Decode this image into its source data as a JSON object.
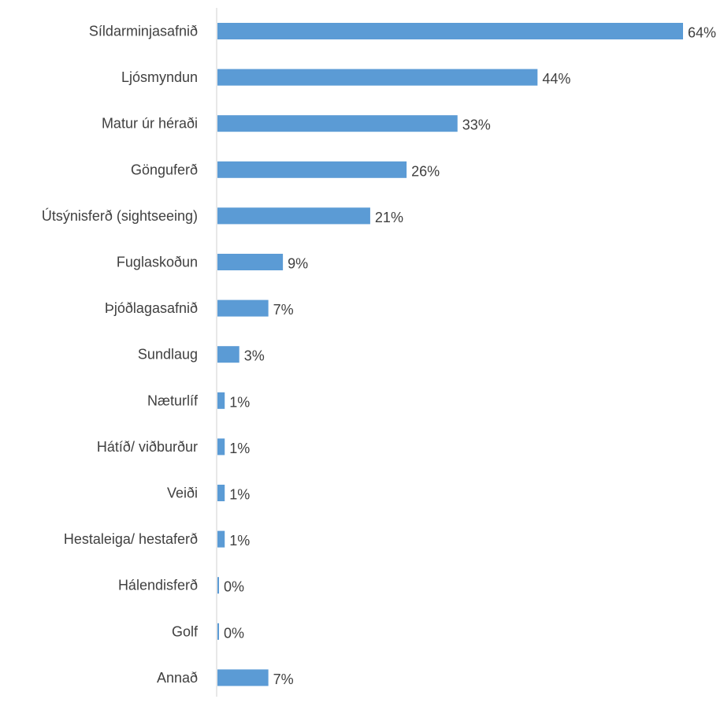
{
  "chart_data": {
    "type": "bar",
    "orientation": "horizontal",
    "title": "",
    "xlabel": "",
    "ylabel": "",
    "xlim": [
      0,
      64
    ],
    "grid": false,
    "legend": "none",
    "value_suffix": "%",
    "bar_color": "#5b9bd5",
    "axis_color": "#d9d9d9",
    "text_color": "#404040",
    "categories": [
      "Síldarminjasafnið",
      "Ljósmyndun",
      "Matur úr héraði",
      "Gönguferð",
      "Útsýnisferð (sightseeing)",
      "Fuglaskoðun",
      "Þjóðlagasafnið",
      "Sundlaug",
      "Næturlíf",
      "Hátíð/ viðburður",
      "Veiði",
      "Hestaleiga/ hestaferð",
      "Hálendisferð",
      "Golf",
      "Annað"
    ],
    "values": [
      64,
      44,
      33,
      26,
      21,
      9,
      7,
      3,
      1,
      1,
      1,
      1,
      0,
      0,
      7
    ],
    "data_labels": [
      "64%",
      "44%",
      "33%",
      "26%",
      "21%",
      "9%",
      "7%",
      "3%",
      "1%",
      "1%",
      "1%",
      "1%",
      "0%",
      "0%",
      "7%"
    ]
  }
}
